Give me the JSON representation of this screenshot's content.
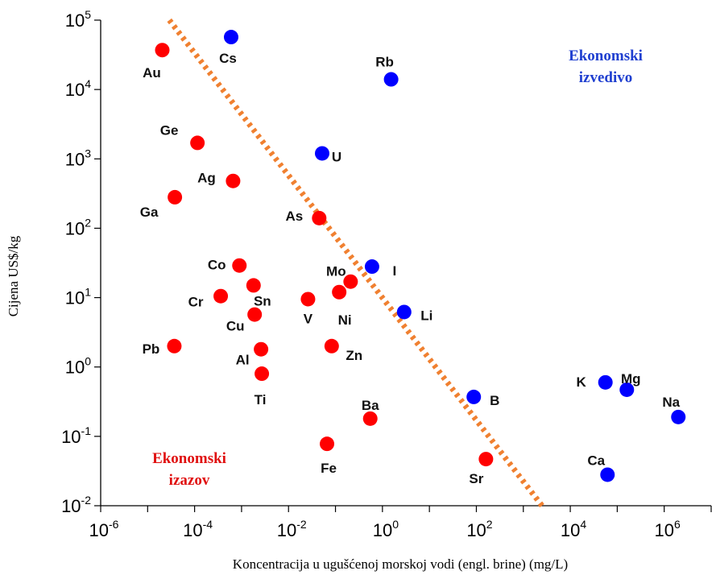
{
  "chart_data": {
    "type": "scatter",
    "xlabel": "Koncentracija u ugušćenoj  morskoj vodi (engl. brine) (mg/L)",
    "ylabel": "Cijena US$/kg",
    "xscale": "log",
    "yscale": "log",
    "xlim_exp": [
      -6,
      7
    ],
    "ylim_exp": [
      -2,
      5
    ],
    "x_tick_exps": [
      -6,
      -4,
      -2,
      0,
      2,
      4,
      6
    ],
    "y_tick_exps": [
      -2,
      -1,
      0,
      1,
      2,
      3,
      4,
      5
    ],
    "tick_base": "10",
    "grid": false,
    "series": [
      {
        "color": "#ff0000",
        "points": [
          {
            "label": "Au",
            "x": 2.05e-05,
            "y": 37000
          },
          {
            "label": "Ge",
            "x": 0.000115,
            "y": 1700
          },
          {
            "label": "Ag",
            "x": 0.00066,
            "y": 480
          },
          {
            "label": "Ga",
            "x": 3.8e-05,
            "y": 280
          },
          {
            "label": "As",
            "x": 0.045,
            "y": 140
          },
          {
            "label": "Co",
            "x": 0.0009,
            "y": 29
          },
          {
            "label": "Sn",
            "x": 0.0018,
            "y": 15
          },
          {
            "label": "Mo",
            "x": 0.21,
            "y": 17
          },
          {
            "label": "Cr",
            "x": 0.00036,
            "y": 10.5
          },
          {
            "label": "V",
            "x": 0.026,
            "y": 9.5
          },
          {
            "label": "Ni",
            "x": 0.12,
            "y": 12
          },
          {
            "label": "Cu",
            "x": 0.0019,
            "y": 5.7
          },
          {
            "label": "Pb",
            "x": 3.7e-05,
            "y": 2.0
          },
          {
            "label": "Al",
            "x": 0.0026,
            "y": 1.8
          },
          {
            "label": "Zn",
            "x": 0.083,
            "y": 2.0
          },
          {
            "label": "Ti",
            "x": 0.0027,
            "y": 0.8
          },
          {
            "label": "Ba",
            "x": 0.55,
            "y": 0.18
          },
          {
            "label": "Fe",
            "x": 0.066,
            "y": 0.078
          },
          {
            "label": "Sr",
            "x": 160,
            "y": 0.047
          }
        ]
      },
      {
        "color": "#0000ff",
        "points": [
          {
            "label": "Cs",
            "x": 0.0006,
            "y": 57000
          },
          {
            "label": "Rb",
            "x": 1.53,
            "y": 14000
          },
          {
            "label": "U",
            "x": 0.052,
            "y": 1200
          },
          {
            "label": "I",
            "x": 0.6,
            "y": 28
          },
          {
            "label": "Li",
            "x": 2.9,
            "y": 6.2
          },
          {
            "label": "B",
            "x": 88,
            "y": 0.37
          },
          {
            "label": "K",
            "x": 56000,
            "y": 0.6
          },
          {
            "label": "Mg",
            "x": 160000,
            "y": 0.47
          },
          {
            "label": "Na",
            "x": 2000000,
            "y": 0.19
          },
          {
            "label": "Ca",
            "x": 62000,
            "y": 0.028
          }
        ]
      }
    ],
    "trendline": {
      "color": "#f08030",
      "style": "dotted",
      "x": [
        2.9e-05,
        2500
      ],
      "y": [
        100000,
        0.01
      ]
    },
    "annotations": [
      {
        "text_lines": [
          "Ekonomski",
          "izvedivo"
        ],
        "color": "#1f3fd0",
        "position": "top-right"
      },
      {
        "text_lines": [
          "Ekonomski",
          "izazov"
        ],
        "color": "#e01010",
        "position": "bottom-left"
      }
    ]
  }
}
